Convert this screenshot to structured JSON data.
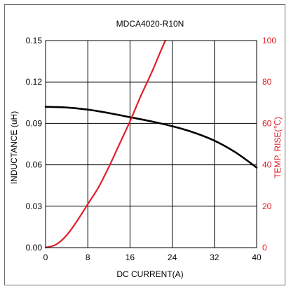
{
  "chart_data": {
    "type": "line",
    "title": "MDCA4020-R10N",
    "xlabel": "DC CURRENT(A)",
    "ylabel_left": "INDUCTANCE (uH)",
    "ylabel_right": "TEMP. RISE(℃)",
    "x_ticks": [
      0,
      8,
      16,
      24,
      32,
      40
    ],
    "y_left_ticks": [
      "0.00",
      "0.03",
      "0.06",
      "0.09",
      "0.12",
      "0.15"
    ],
    "y_right_ticks": [
      0,
      20,
      40,
      60,
      80,
      100
    ],
    "xlim": [
      0,
      40
    ],
    "ylim_left": [
      0,
      0.15
    ],
    "ylim_right": [
      0,
      100
    ],
    "grid": true,
    "colors": {
      "inductance": "#000000",
      "temp_rise": "#e0202a",
      "axis_text": "#000000",
      "right_axis_text": "#e0202a"
    },
    "series": [
      {
        "axis": "left",
        "x": [
          0,
          4,
          8,
          12,
          16,
          20,
          24,
          28,
          32,
          36,
          40
        ],
        "y": [
          0.102,
          0.1015,
          0.1,
          0.0975,
          0.0945,
          0.0915,
          0.088,
          0.0835,
          0.0775,
          0.069,
          0.058
        ]
      },
      {
        "axis": "right",
        "x": [
          0,
          2,
          4,
          6,
          8,
          10,
          12,
          14,
          16,
          18,
          20,
          22,
          22.7
        ],
        "y": [
          0,
          1.5,
          6,
          13,
          21,
          29,
          39,
          50,
          61,
          73,
          84,
          96,
          100
        ]
      }
    ]
  }
}
